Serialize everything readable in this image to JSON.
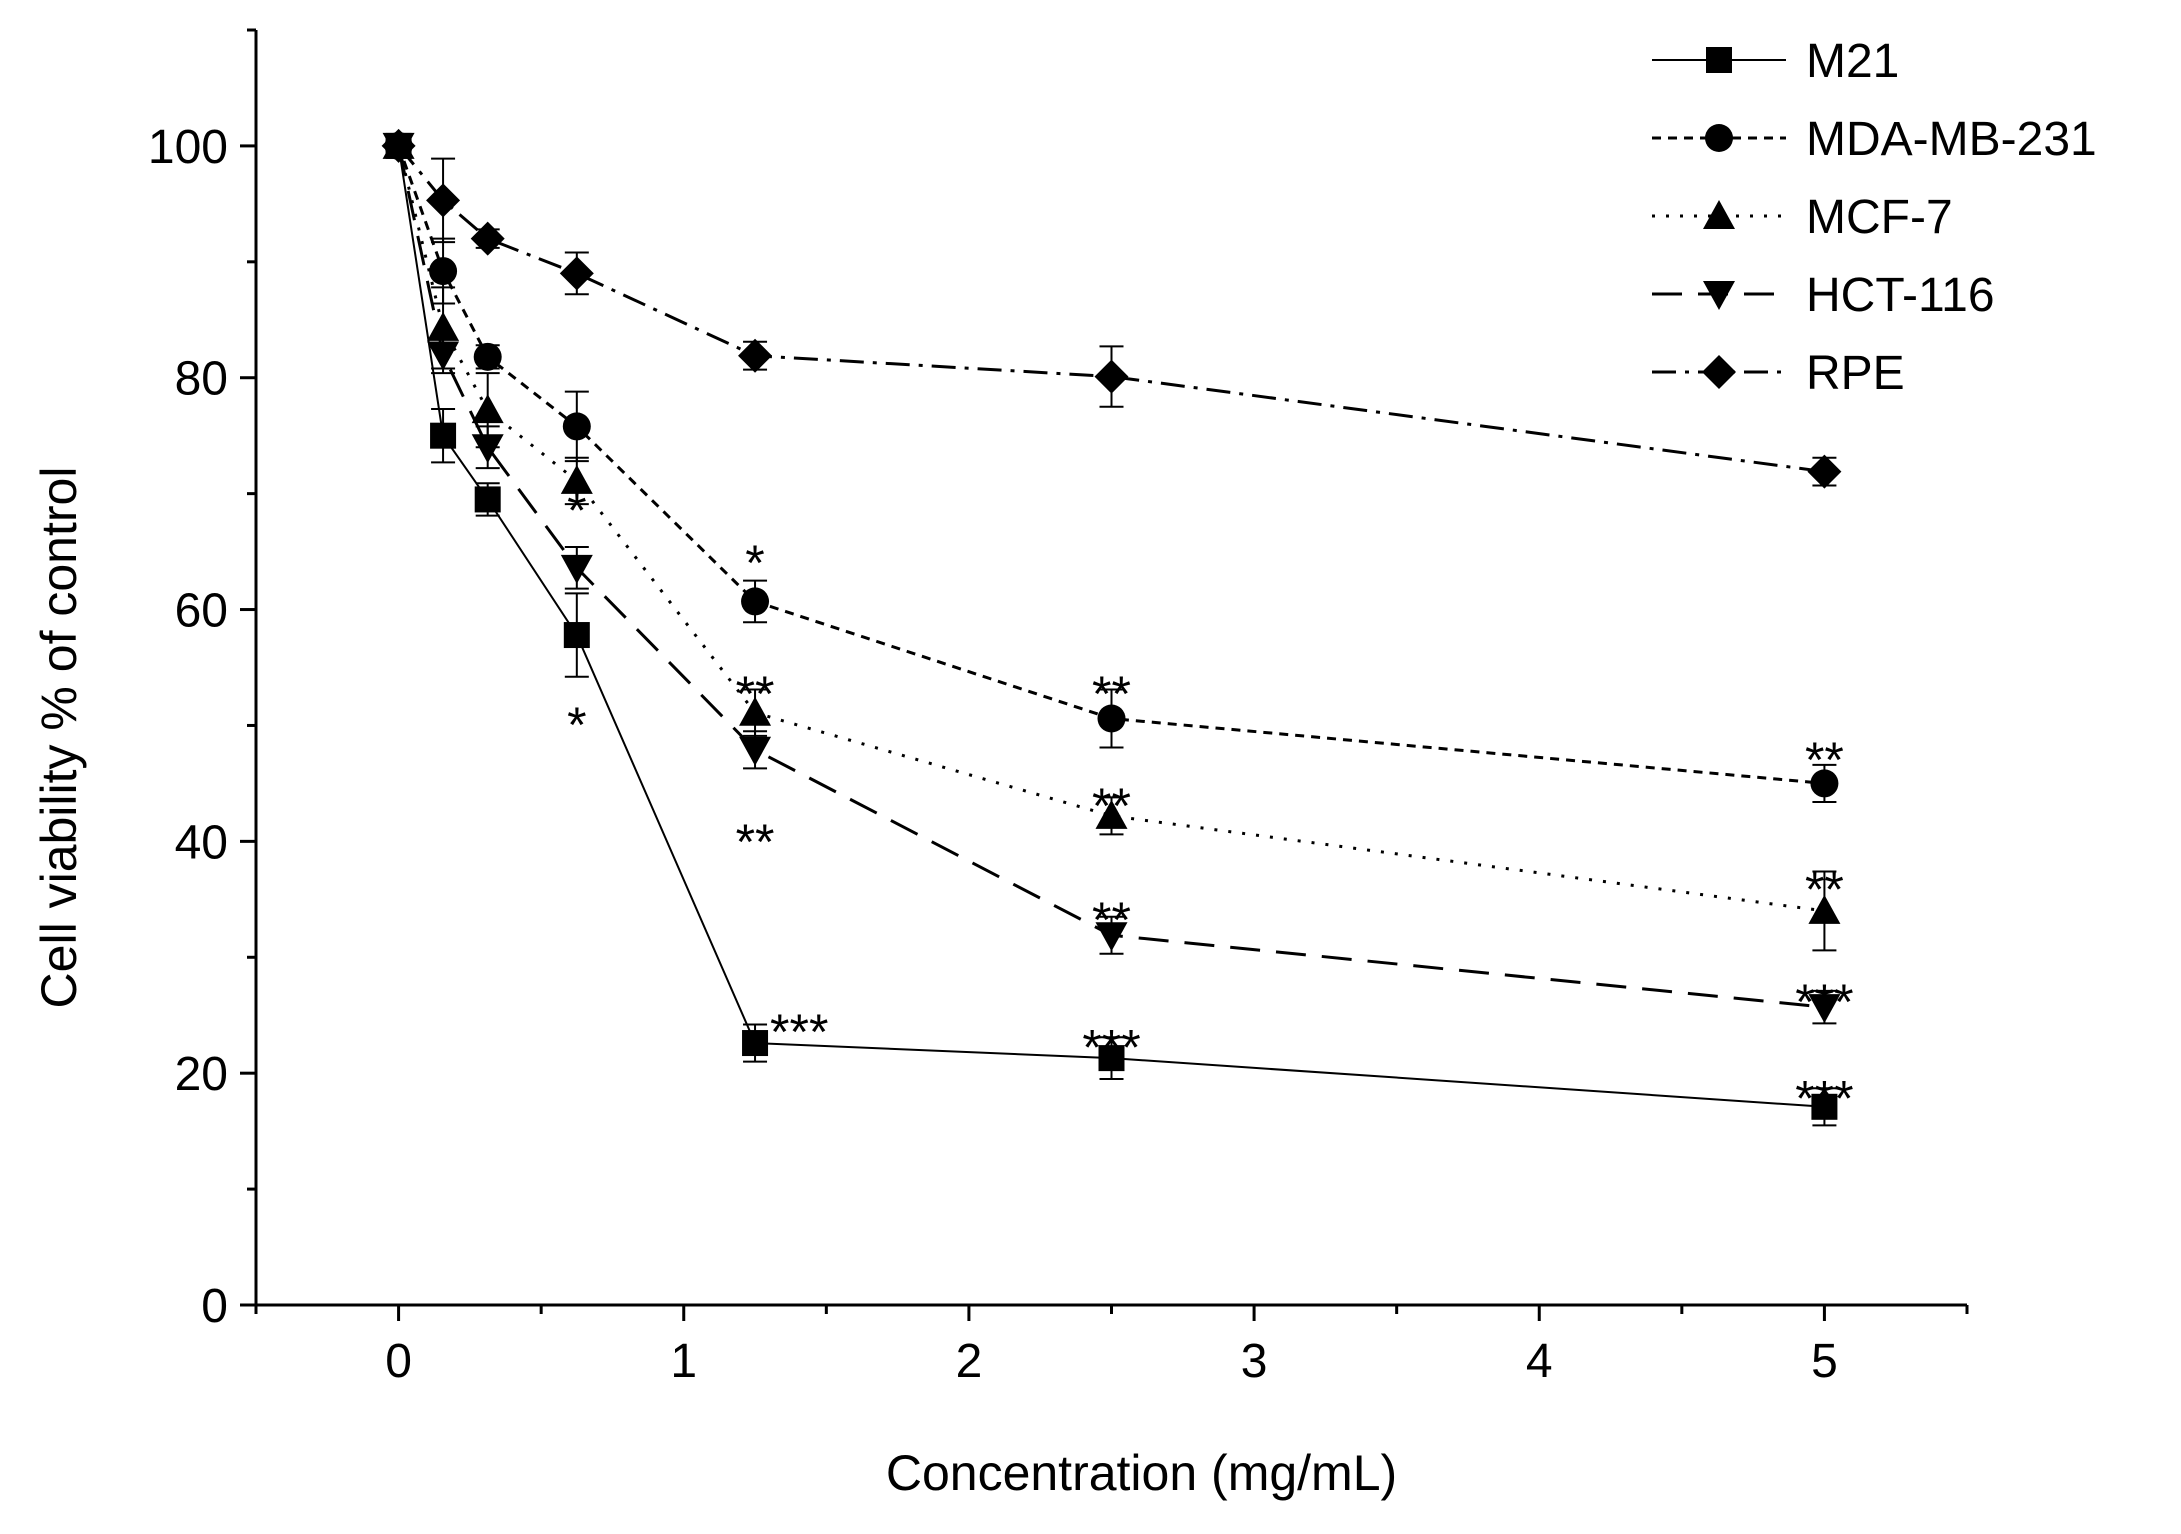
{
  "chart_data": {
    "type": "line",
    "title": "",
    "xlabel": "Concentration (mg/mL)",
    "ylabel": "Cell viability %  of control",
    "xlim": [
      -0.5,
      5.5
    ],
    "ylim": [
      0,
      110
    ],
    "x_ticks": [
      0,
      1,
      2,
      3,
      4,
      5
    ],
    "x_tick_labels": [
      "0",
      "1",
      "2",
      "3",
      "4",
      "5"
    ],
    "y_ticks": [
      0,
      20,
      40,
      60,
      80,
      100
    ],
    "y_tick_labels": [
      "0",
      "20",
      "40",
      "60",
      "80",
      "100"
    ],
    "grid": false,
    "legend_position": "top-right",
    "x": [
      0,
      0.156,
      0.3125,
      0.625,
      1.25,
      2.5,
      5
    ],
    "series": [
      {
        "name": "M21",
        "marker": "square",
        "dash": "solid",
        "values": [
          100,
          75,
          69.5,
          57.8,
          22.6,
          21.3,
          17.1
        ],
        "errors": [
          0.8,
          2.3,
          1.4,
          3.6,
          1.6,
          1.8,
          1.6
        ]
      },
      {
        "name": "MDA-MB-231",
        "marker": "circle",
        "dash": "short-dash",
        "values": [
          100,
          89.2,
          81.8,
          75.8,
          60.7,
          50.6,
          45.0
        ],
        "errors": [
          0.8,
          2.8,
          1.0,
          3.0,
          1.8,
          2.5,
          1.6
        ]
      },
      {
        "name": "MCF-7",
        "marker": "triangle-up",
        "dash": "dot",
        "values": [
          100,
          84.3,
          77.2,
          71.1,
          51.1,
          42.2,
          34.0
        ],
        "errors": [
          0.8,
          3.5,
          3.2,
          2.0,
          2.0,
          1.6,
          3.4
        ]
      },
      {
        "name": "HCT-116",
        "marker": "triangle-down",
        "dash": "long-dash",
        "values": [
          100,
          82.0,
          74.0,
          63.6,
          47.9,
          31.9,
          25.7
        ],
        "errors": [
          0.8,
          1.6,
          1.8,
          1.8,
          1.6,
          1.6,
          1.4
        ]
      },
      {
        "name": "RPE",
        "marker": "diamond",
        "dash": "dash-dot",
        "values": [
          100,
          95.3,
          92.0,
          89.0,
          81.9,
          80.1,
          71.9
        ],
        "errors": [
          0.8,
          3.6,
          0.8,
          1.8,
          1.2,
          2.6,
          1.2
        ]
      }
    ],
    "annotations": [
      {
        "text": "*",
        "x": 0.625,
        "y": 70.0
      },
      {
        "text": "*",
        "x": 0.625,
        "y": 51.5
      },
      {
        "text": "*",
        "x": 1.25,
        "y": 65.5
      },
      {
        "text": "**",
        "x": 1.25,
        "y": 54.2
      },
      {
        "text": "**",
        "x": 1.25,
        "y": 41.4
      },
      {
        "text": "***",
        "x": 1.405,
        "y": 25.0
      },
      {
        "text": "**",
        "x": 2.5,
        "y": 54.2
      },
      {
        "text": "**",
        "x": 2.5,
        "y": 44.5
      },
      {
        "text": "**",
        "x": 2.5,
        "y": 34.7
      },
      {
        "text": "***",
        "x": 2.5,
        "y": 23.7
      },
      {
        "text": "**",
        "x": 5,
        "y": 48.5
      },
      {
        "text": "**",
        "x": 5,
        "y": 37.3
      },
      {
        "text": "***",
        "x": 5,
        "y": 27.6
      },
      {
        "text": "***",
        "x": 5,
        "y": 19.3
      }
    ]
  }
}
